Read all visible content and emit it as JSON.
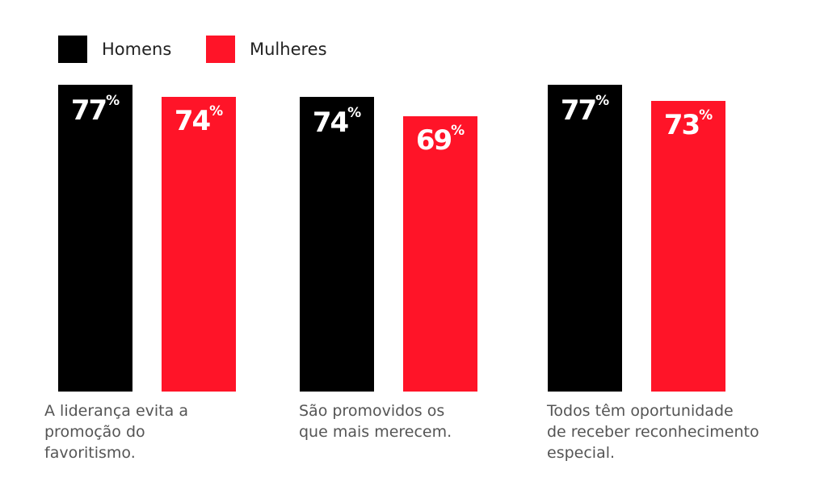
{
  "chart_data": {
    "type": "bar",
    "categories": [
      "A liderança evita a promoção do favoritismo.",
      "São promovidos os que mais merecem.",
      "Todos têm oportunidade de receber reconhecimento especial."
    ],
    "category_lines": [
      [
        "A liderança evita a",
        "promoção do",
        "favoritismo."
      ],
      [
        "São promovidos os",
        "que mais merecem."
      ],
      [
        "Todos têm oportunidade",
        "de receber reconhecimento",
        "especial."
      ]
    ],
    "series": [
      {
        "name": "Homens",
        "values": [
          77,
          74,
          77
        ],
        "color": "#000000"
      },
      {
        "name": "Mulheres",
        "values": [
          74,
          69,
          73
        ],
        "color": "#ff1428"
      }
    ],
    "unit": "%",
    "legend": "top-left",
    "grid": false
  }
}
